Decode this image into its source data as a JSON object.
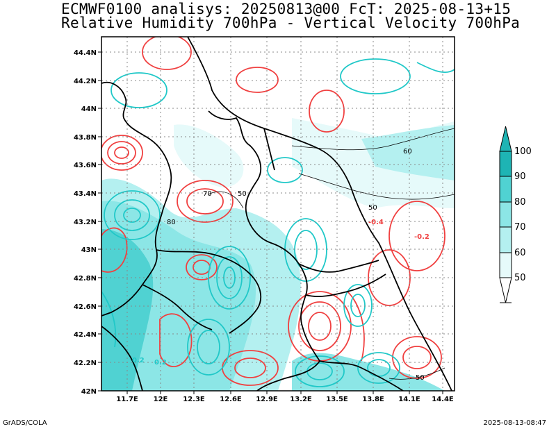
{
  "title": {
    "line1": "ECMWF0100 analisys: 20250813@00 FcT: 2025-08-13+15",
    "line2": "Relative Humidity 700hPa - Vertical Velocity 700hPa"
  },
  "axes": {
    "lon_labels": [
      "11.7E",
      "12E",
      "12.3E",
      "12.6E",
      "12.9E",
      "13.2E",
      "13.5E",
      "13.8E",
      "14.1E",
      "14.4E"
    ],
    "lat_labels": [
      "44.4N",
      "44.2N",
      "44N",
      "43.8N",
      "43.6N",
      "43.4N",
      "43.2N",
      "43N",
      "42.8N",
      "42.6N",
      "42.4N",
      "42.2N",
      "42N"
    ]
  },
  "colorbar": {
    "levels": [
      "50",
      "60",
      "70",
      "80",
      "90",
      "100"
    ],
    "colors": [
      "#ffffff",
      "#e6fafa",
      "#b4f0f0",
      "#8ce6e6",
      "#50d2d2",
      "#1eb4b4"
    ]
  },
  "contour_labels": {
    "rh": [
      "60",
      "70",
      "50",
      "80",
      "50",
      "50"
    ],
    "omega": [
      "-0.4",
      "-0.2",
      "0.2",
      "0.2"
    ]
  },
  "colors": {
    "positive_omega": "#f04040",
    "negative_omega": "#20c8c8",
    "rh_line": "#000000",
    "boundary": "#000000"
  },
  "footer": {
    "left": "GrADS/COLA",
    "right": "2025-08-13-08:47"
  }
}
